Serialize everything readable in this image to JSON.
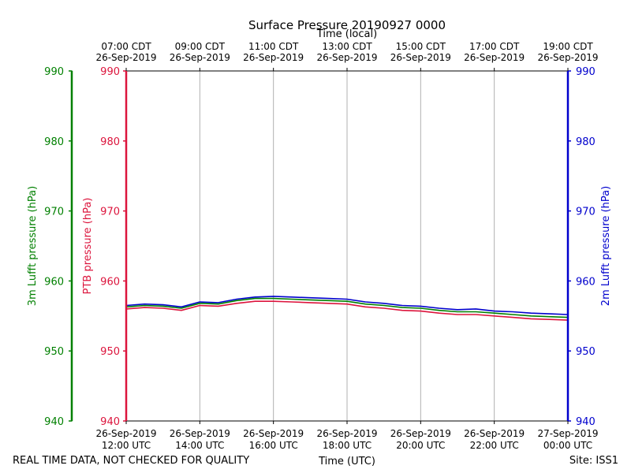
{
  "chart_data": {
    "type": "line",
    "title": "Surface Pressure 20190927 0000",
    "top_axis_label": "Time (local)",
    "xlabel": "Time (UTC)",
    "footer_left": "REAL TIME DATA, NOT CHECKED FOR QUALITY",
    "footer_right": "Site: ISS1",
    "x_hours_utc": [
      12,
      24
    ],
    "ylim": [
      940,
      990
    ],
    "yticks": [
      940,
      950,
      960,
      970,
      980,
      990
    ],
    "grid": true,
    "bottom_ticks": [
      {
        "hour": 12,
        "line1": "26-Sep-2019",
        "line2": "12:00 UTC"
      },
      {
        "hour": 14,
        "line1": "26-Sep-2019",
        "line2": "14:00 UTC"
      },
      {
        "hour": 16,
        "line1": "26-Sep-2019",
        "line2": "16:00 UTC"
      },
      {
        "hour": 18,
        "line1": "26-Sep-2019",
        "line2": "18:00 UTC"
      },
      {
        "hour": 20,
        "line1": "26-Sep-2019",
        "line2": "20:00 UTC"
      },
      {
        "hour": 22,
        "line1": "26-Sep-2019",
        "line2": "22:00 UTC"
      },
      {
        "hour": 24,
        "line1": "27-Sep-2019",
        "line2": "00:00 UTC"
      }
    ],
    "top_ticks": [
      {
        "hour": 12,
        "line1": "07:00 CDT",
        "line2": "26-Sep-2019"
      },
      {
        "hour": 14,
        "line1": "09:00 CDT",
        "line2": "26-Sep-2019"
      },
      {
        "hour": 16,
        "line1": "11:00 CDT",
        "line2": "26-Sep-2019"
      },
      {
        "hour": 18,
        "line1": "13:00 CDT",
        "line2": "26-Sep-2019"
      },
      {
        "hour": 20,
        "line1": "15:00 CDT",
        "line2": "26-Sep-2019"
      },
      {
        "hour": 22,
        "line1": "17:00 CDT",
        "line2": "26-Sep-2019"
      },
      {
        "hour": 24,
        "line1": "19:00 CDT",
        "line2": "26-Sep-2019"
      }
    ],
    "axes": {
      "left_outer": {
        "label": "3m Lufft pressure (hPa)",
        "color": "#008000"
      },
      "left_inner": {
        "label": "PTB pressure (hPa)",
        "color": "#dc143c"
      },
      "right": {
        "label": "2m Lufft pressure (hPa)",
        "color": "#0000cd"
      }
    },
    "series": [
      {
        "name": "2m Lufft pressure",
        "color": "#0000cd",
        "x": [
          12.0,
          12.5,
          13.0,
          13.5,
          14.0,
          14.5,
          15.0,
          15.5,
          16.0,
          16.5,
          17.0,
          17.5,
          18.0,
          18.5,
          19.0,
          19.5,
          20.0,
          20.5,
          21.0,
          21.5,
          22.0,
          22.5,
          23.0,
          23.5,
          24.0
        ],
        "values": [
          956.5,
          956.7,
          956.6,
          956.3,
          957.0,
          956.9,
          957.4,
          957.7,
          957.8,
          957.7,
          957.6,
          957.5,
          957.4,
          957.0,
          956.8,
          956.5,
          956.4,
          956.1,
          955.9,
          956.0,
          955.7,
          955.6,
          955.4,
          955.3,
          955.2
        ]
      },
      {
        "name": "3m Lufft pressure",
        "color": "#008000",
        "x": [
          12.0,
          12.5,
          13.0,
          13.5,
          14.0,
          14.5,
          15.0,
          15.5,
          16.0,
          16.5,
          17.0,
          17.5,
          18.0,
          18.5,
          19.0,
          19.5,
          20.0,
          20.5,
          21.0,
          21.5,
          22.0,
          22.5,
          23.0,
          23.5,
          24.0
        ],
        "values": [
          956.3,
          956.5,
          956.4,
          956.1,
          956.8,
          956.7,
          957.2,
          957.5,
          957.5,
          957.4,
          957.3,
          957.2,
          957.1,
          956.7,
          956.5,
          956.2,
          956.1,
          955.8,
          955.6,
          955.6,
          955.4,
          955.2,
          955.0,
          954.9,
          954.8
        ]
      },
      {
        "name": "PTB pressure",
        "color": "#dc143c",
        "x": [
          12.0,
          12.5,
          13.0,
          13.5,
          14.0,
          14.5,
          15.0,
          15.5,
          16.0,
          16.5,
          17.0,
          17.5,
          18.0,
          18.5,
          19.0,
          19.5,
          20.0,
          20.5,
          21.0,
          21.5,
          22.0,
          22.5,
          23.0,
          23.5,
          24.0
        ],
        "values": [
          956.0,
          956.2,
          956.1,
          955.8,
          956.5,
          956.4,
          956.8,
          957.1,
          957.1,
          957.0,
          956.9,
          956.8,
          956.7,
          956.3,
          956.1,
          955.8,
          955.7,
          955.4,
          955.2,
          955.2,
          955.0,
          954.8,
          954.6,
          954.5,
          954.4
        ]
      }
    ]
  }
}
